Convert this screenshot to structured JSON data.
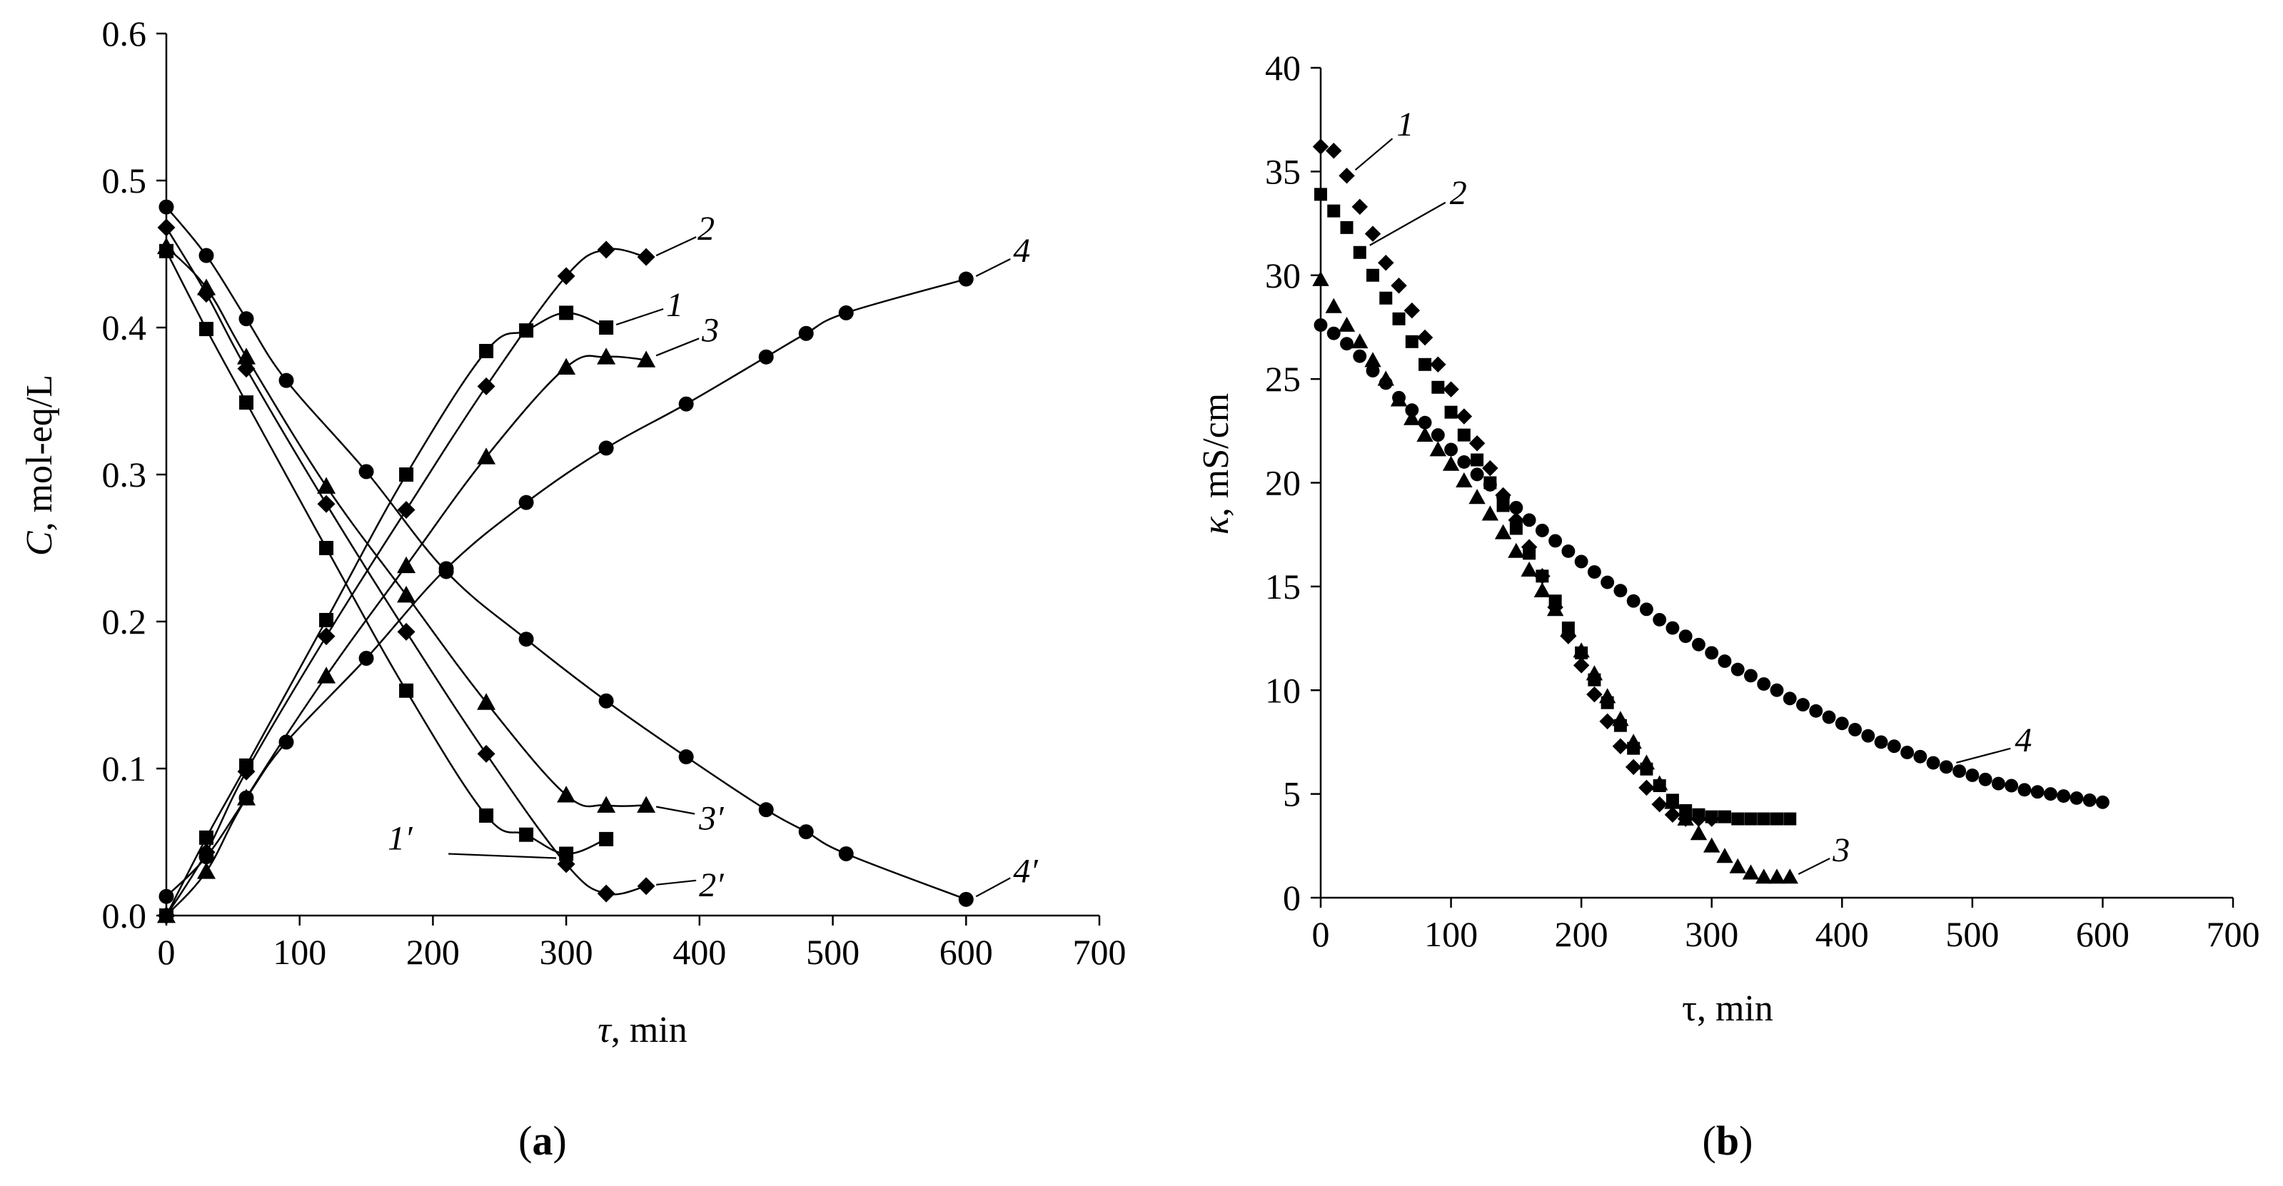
{
  "panels": [
    {
      "id": "a",
      "panel_label": "(a)",
      "panel_label_letter": "a",
      "xlabel_symbol": "τ",
      "xlabel_rest": ", min",
      "ylabel_symbol": "C",
      "ylabel_rest": ", mol-eq/L"
    },
    {
      "id": "b",
      "panel_label": "(b)",
      "panel_label_letter": "b",
      "xlabel_symbol": "τ",
      "xlabel_rest": ", min",
      "ylabel_symbol": "κ",
      "ylabel_rest": ", mS/cm"
    }
  ],
  "chart_data": [
    {
      "type": "line",
      "panel": "a",
      "xlabel": "τ, min",
      "ylabel": "C, mol-eq/L",
      "xlim": [
        0,
        700
      ],
      "ylim": [
        0,
        0.6
      ],
      "xticks": [
        0,
        100,
        200,
        300,
        400,
        500,
        600,
        700
      ],
      "yticks": [
        0.0,
        0.1,
        0.2,
        0.3,
        0.4,
        0.5,
        0.6
      ],
      "ytick_labels": [
        "0.0",
        "0.1",
        "0.2",
        "0.3",
        "0.4",
        "0.5",
        "0.6"
      ],
      "series": [
        {
          "name": "1",
          "marker": "square",
          "x": [
            0,
            30,
            60,
            120,
            180,
            240,
            270,
            300,
            330
          ],
          "y": [
            0.0,
            0.053,
            0.102,
            0.201,
            0.3,
            0.384,
            0.398,
            0.41,
            0.4
          ]
        },
        {
          "name": "2",
          "marker": "diamond",
          "x": [
            0,
            30,
            60,
            120,
            180,
            240,
            300,
            330,
            360
          ],
          "y": [
            0.0,
            0.043,
            0.098,
            0.19,
            0.276,
            0.36,
            0.435,
            0.453,
            0.448
          ]
        },
        {
          "name": "3",
          "marker": "triangle",
          "x": [
            0,
            30,
            60,
            120,
            180,
            240,
            300,
            330,
            360
          ],
          "y": [
            0.0,
            0.03,
            0.08,
            0.163,
            0.238,
            0.312,
            0.373,
            0.38,
            0.378
          ]
        },
        {
          "name": "4",
          "marker": "circle",
          "x": [
            0,
            30,
            60,
            90,
            150,
            210,
            270,
            330,
            390,
            450,
            480,
            510,
            600
          ],
          "y": [
            0.013,
            0.04,
            0.08,
            0.118,
            0.175,
            0.236,
            0.281,
            0.318,
            0.348,
            0.38,
            0.396,
            0.41,
            0.433
          ]
        },
        {
          "name": "1′",
          "marker": "square",
          "x": [
            0,
            30,
            60,
            120,
            180,
            240,
            270,
            300,
            330
          ],
          "y": [
            0.452,
            0.399,
            0.349,
            0.25,
            0.153,
            0.068,
            0.055,
            0.042,
            0.052
          ]
        },
        {
          "name": "2′",
          "marker": "diamond",
          "x": [
            0,
            30,
            60,
            120,
            180,
            240,
            300,
            330,
            360
          ],
          "y": [
            0.468,
            0.423,
            0.372,
            0.28,
            0.193,
            0.11,
            0.035,
            0.015,
            0.02
          ]
        },
        {
          "name": "3′",
          "marker": "triangle",
          "x": [
            0,
            30,
            60,
            120,
            180,
            240,
            300,
            330,
            360
          ],
          "y": [
            0.455,
            0.427,
            0.38,
            0.292,
            0.218,
            0.145,
            0.082,
            0.075,
            0.075
          ]
        },
        {
          "name": "4′",
          "marker": "circle",
          "x": [
            0,
            30,
            60,
            90,
            150,
            210,
            270,
            330,
            390,
            450,
            480,
            510,
            600
          ],
          "y": [
            0.482,
            0.449,
            0.406,
            0.364,
            0.302,
            0.234,
            0.188,
            0.146,
            0.108,
            0.072,
            0.057,
            0.042,
            0.011
          ]
        }
      ],
      "annotations": [
        {
          "text": "1",
          "series": "1"
        },
        {
          "text": "2",
          "series": "2"
        },
        {
          "text": "3",
          "series": "3"
        },
        {
          "text": "4",
          "series": "4"
        },
        {
          "text": "1′",
          "series": "1′"
        },
        {
          "text": "2′",
          "series": "2′"
        },
        {
          "text": "3′",
          "series": "3′"
        },
        {
          "text": "4′",
          "series": "4′"
        }
      ]
    },
    {
      "type": "scatter",
      "panel": "b",
      "xlabel": "τ, min",
      "ylabel": "κ, mS/cm",
      "xlim": [
        0,
        700
      ],
      "ylim": [
        0,
        40
      ],
      "xticks": [
        0,
        100,
        200,
        300,
        400,
        500,
        600,
        700
      ],
      "yticks": [
        0,
        5,
        10,
        15,
        20,
        25,
        30,
        35,
        40
      ],
      "ytick_labels": [
        "0",
        "5",
        "10",
        "15",
        "20",
        "25",
        "30",
        "35",
        "40"
      ],
      "series": [
        {
          "name": "1",
          "marker": "diamond",
          "x": [
            0,
            10,
            20,
            30,
            40,
            50,
            60,
            70,
            80,
            90,
            100,
            110,
            120,
            130,
            140,
            150,
            160,
            170,
            180,
            190,
            200,
            210,
            220,
            230,
            240,
            250,
            260,
            270,
            280,
            290,
            300
          ],
          "y": [
            36.2,
            36.0,
            34.8,
            33.3,
            32.0,
            30.6,
            29.5,
            28.3,
            27.0,
            25.7,
            24.5,
            23.2,
            21.9,
            20.7,
            19.4,
            18.2,
            16.9,
            15.5,
            14.0,
            12.6,
            11.2,
            9.8,
            8.5,
            7.3,
            6.3,
            5.3,
            4.5,
            4.0,
            3.8,
            3.8,
            3.8
          ]
        },
        {
          "name": "2",
          "marker": "square",
          "x": [
            0,
            10,
            20,
            30,
            40,
            50,
            60,
            70,
            80,
            90,
            100,
            110,
            120,
            130,
            140,
            150,
            160,
            170,
            180,
            190,
            200,
            210,
            220,
            230,
            240,
            250,
            260,
            270,
            280,
            290,
            300,
            310,
            320,
            330,
            340,
            350,
            360
          ],
          "y": [
            33.9,
            33.1,
            32.3,
            31.1,
            30.0,
            28.9,
            27.9,
            26.8,
            25.7,
            24.6,
            23.4,
            22.3,
            21.1,
            20.0,
            18.9,
            17.8,
            16.6,
            15.5,
            14.3,
            13.0,
            11.8,
            10.5,
            9.4,
            8.3,
            7.2,
            6.2,
            5.4,
            4.7,
            4.2,
            4.0,
            3.9,
            3.9,
            3.8,
            3.8,
            3.8,
            3.8,
            3.8
          ]
        },
        {
          "name": "3",
          "marker": "triangle",
          "x": [
            0,
            10,
            20,
            30,
            40,
            50,
            60,
            70,
            80,
            90,
            100,
            110,
            120,
            130,
            140,
            150,
            160,
            170,
            180,
            190,
            200,
            210,
            220,
            230,
            240,
            250,
            260,
            270,
            280,
            290,
            300,
            310,
            320,
            330,
            340,
            350,
            360
          ],
          "y": [
            29.8,
            28.5,
            27.6,
            26.8,
            25.9,
            25.0,
            24.0,
            23.1,
            22.3,
            21.6,
            20.9,
            20.1,
            19.3,
            18.5,
            17.6,
            16.7,
            15.8,
            14.8,
            13.9,
            12.9,
            11.9,
            10.8,
            9.7,
            8.6,
            7.5,
            6.5,
            5.5,
            4.6,
            3.8,
            3.1,
            2.5,
            2.0,
            1.5,
            1.2,
            1.0,
            1.0,
            1.0
          ]
        },
        {
          "name": "4",
          "marker": "circle",
          "x": [
            0,
            10,
            20,
            30,
            40,
            50,
            60,
            70,
            80,
            90,
            100,
            110,
            120,
            130,
            140,
            150,
            160,
            170,
            180,
            190,
            200,
            210,
            220,
            230,
            240,
            250,
            260,
            270,
            280,
            290,
            300,
            310,
            320,
            330,
            340,
            350,
            360,
            370,
            380,
            390,
            400,
            410,
            420,
            430,
            440,
            450,
            460,
            470,
            480,
            490,
            500,
            510,
            520,
            530,
            540,
            550,
            560,
            570,
            580,
            590,
            600
          ],
          "y": [
            27.6,
            27.2,
            26.7,
            26.1,
            25.4,
            24.8,
            24.1,
            23.5,
            22.9,
            22.3,
            21.6,
            21.0,
            20.4,
            19.9,
            19.3,
            18.8,
            18.2,
            17.7,
            17.2,
            16.7,
            16.2,
            15.7,
            15.2,
            14.8,
            14.3,
            13.9,
            13.4,
            13.0,
            12.6,
            12.2,
            11.8,
            11.4,
            11.0,
            10.7,
            10.3,
            10.0,
            9.6,
            9.3,
            9.0,
            8.7,
            8.4,
            8.1,
            7.8,
            7.5,
            7.3,
            7.0,
            6.8,
            6.5,
            6.3,
            6.1,
            5.9,
            5.7,
            5.5,
            5.4,
            5.2,
            5.1,
            5.0,
            4.9,
            4.8,
            4.7,
            4.6
          ]
        }
      ],
      "annotations": [
        {
          "text": "1",
          "series": "1"
        },
        {
          "text": "2",
          "series": "2"
        },
        {
          "text": "3",
          "series": "3"
        },
        {
          "text": "4",
          "series": "4"
        }
      ]
    }
  ]
}
